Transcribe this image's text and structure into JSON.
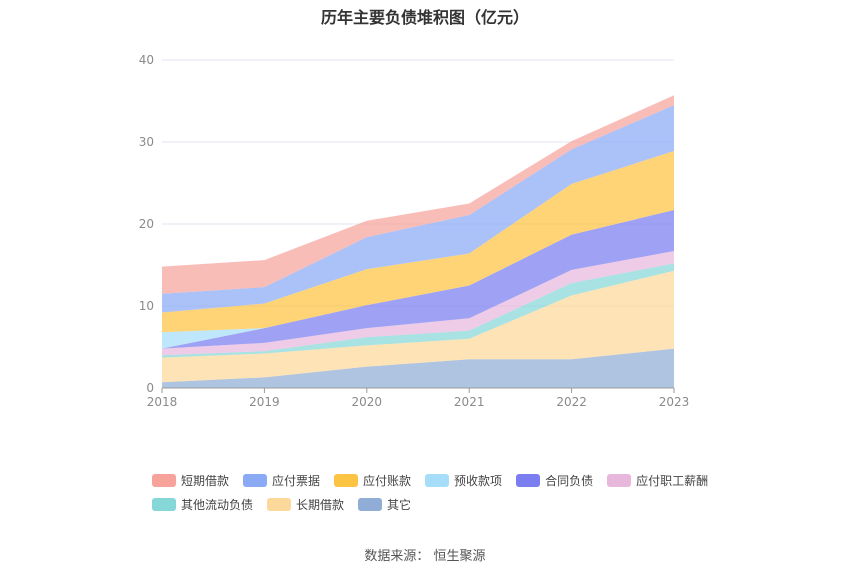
{
  "title": "历年主要负债堆积图（亿元）",
  "source": "数据来源：  恒生聚源",
  "chart_data": {
    "type": "area",
    "stacked": true,
    "x": [
      "2018",
      "2019",
      "2020",
      "2021",
      "2022",
      "2023"
    ],
    "ylim": [
      0,
      40
    ],
    "yticks": [
      0,
      10,
      20,
      30,
      40
    ],
    "grid": true,
    "legend_position": "bottom",
    "series": [
      {
        "name": "其它",
        "color": "#8fadd6",
        "values": [
          0.7,
          1.3,
          2.6,
          3.5,
          3.5,
          4.8
        ]
      },
      {
        "name": "长期借款",
        "color": "#fcd89a",
        "values": [
          3.0,
          2.9,
          2.6,
          2.5,
          7.8,
          9.5
        ]
      },
      {
        "name": "其他流动负债",
        "color": "#86d7d7",
        "values": [
          0.3,
          0.3,
          1.0,
          1.0,
          1.5,
          0.9
        ]
      },
      {
        "name": "应付职工薪酬",
        "color": "#e8b7dc",
        "values": [
          0.8,
          1.0,
          1.1,
          1.5,
          1.6,
          1.5
        ]
      },
      {
        "name": "合同负债",
        "color": "#7a7ef0",
        "values": [
          0.0,
          1.8,
          2.8,
          4.0,
          4.3,
          5.0
        ]
      },
      {
        "name": "预收款项",
        "color": "#a6def9",
        "values": [
          2.0,
          0.0,
          0.0,
          0.0,
          0.0,
          0.0
        ]
      },
      {
        "name": "应付账款",
        "color": "#fdc443",
        "values": [
          2.4,
          3.0,
          4.4,
          3.9,
          6.2,
          7.2
        ]
      },
      {
        "name": "应付票据",
        "color": "#8aaaf5",
        "values": [
          2.3,
          2.0,
          3.9,
          4.7,
          4.2,
          5.6
        ]
      },
      {
        "name": "短期借款",
        "color": "#f7a39c",
        "values": [
          3.3,
          3.3,
          2.0,
          1.4,
          1.0,
          1.2
        ]
      }
    ],
    "legend_order": [
      "短期借款",
      "应付票据",
      "应付账款",
      "预收款项",
      "合同负债",
      "应付职工薪酬",
      "其他流动负债",
      "长期借款",
      "其它"
    ]
  }
}
